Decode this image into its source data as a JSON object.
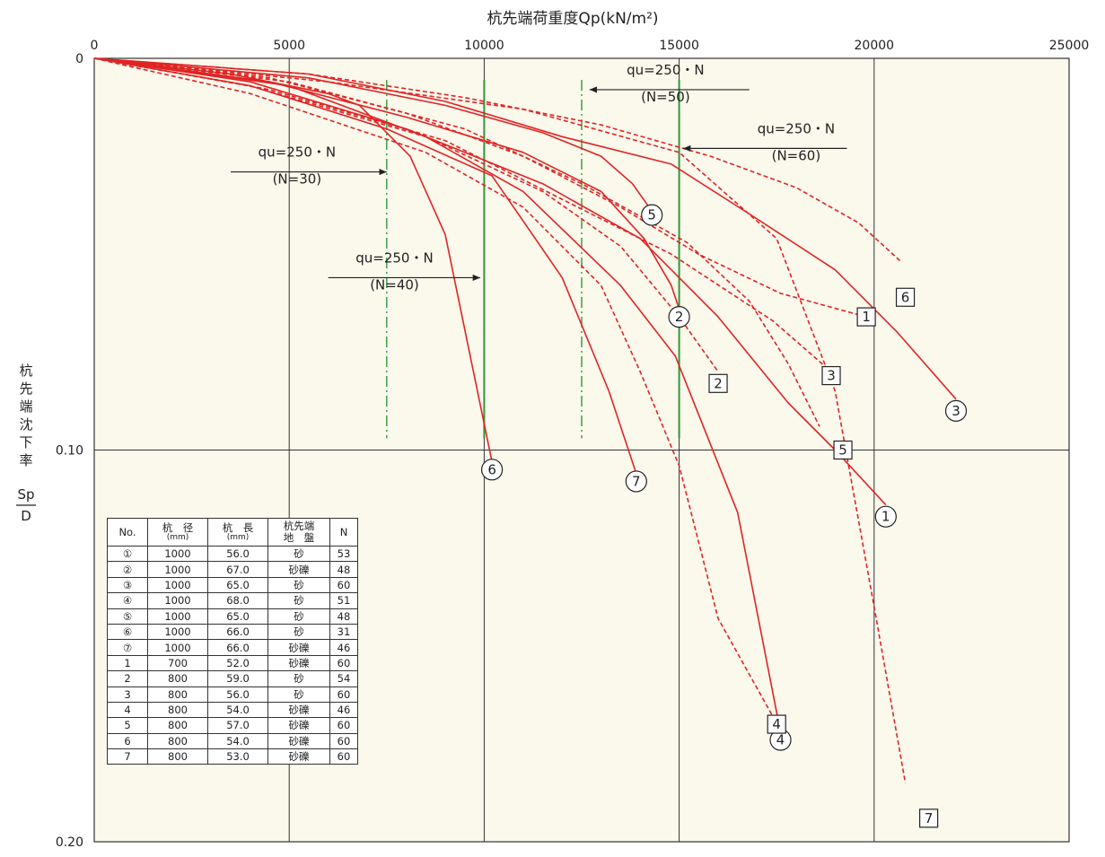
{
  "chart_data": {
    "type": "line",
    "title": "杭先端荷重度Qp(kN/m²)",
    "xlabel": "杭先端荷重度Qp(kN/m²)",
    "ylabel_chars": [
      "杭",
      "先",
      "端",
      "沈",
      "下",
      "率"
    ],
    "ylabel_fraction": {
      "numerator": "Sp",
      "denominator": "D"
    },
    "xlim": [
      0,
      25000
    ],
    "ylim": [
      0,
      0.2
    ],
    "y_inverted": true,
    "x_ticks": [
      0,
      5000,
      10000,
      15000,
      20000,
      25000
    ],
    "x_tick_labels": [
      "0",
      "5000",
      "10000",
      "15000",
      "20000",
      "25000"
    ],
    "y_ticks": [
      0,
      0.1,
      0.2
    ],
    "y_tick_labels": [
      "0",
      "0.10",
      "0.20"
    ],
    "grid": true,
    "colors": {
      "curve": "#e02424",
      "guide": "#2e9a3a",
      "grid": "#333333",
      "plot_bg": "#fbf8ec",
      "axis": "#222222"
    },
    "series": [
      {
        "name": "①",
        "style": "solid",
        "points": [
          [
            0,
            0
          ],
          [
            4000,
            0.006
          ],
          [
            8000,
            0.018
          ],
          [
            11500,
            0.032
          ],
          [
            14000,
            0.046
          ],
          [
            16000,
            0.066
          ],
          [
            17800,
            0.088
          ],
          [
            19000,
            0.1
          ],
          [
            20300,
            0.114
          ]
        ],
        "marker": "①",
        "marker_at": [
          20300,
          0.117
        ]
      },
      {
        "name": "②",
        "style": "solid",
        "points": [
          [
            0,
            0
          ],
          [
            4500,
            0.006
          ],
          [
            8000,
            0.015
          ],
          [
            11000,
            0.024
          ],
          [
            13000,
            0.034
          ],
          [
            14100,
            0.046
          ],
          [
            14800,
            0.058
          ],
          [
            15000,
            0.064
          ]
        ],
        "marker": "②",
        "marker_at": [
          15000,
          0.066
        ]
      },
      {
        "name": "③",
        "style": "solid",
        "points": [
          [
            0,
            0
          ],
          [
            5500,
            0.004
          ],
          [
            9000,
            0.011
          ],
          [
            12000,
            0.02
          ],
          [
            14800,
            0.027
          ],
          [
            17000,
            0.041
          ],
          [
            19000,
            0.054
          ],
          [
            20600,
            0.07
          ],
          [
            22100,
            0.087
          ]
        ],
        "marker": "③",
        "marker_at": [
          22100,
          0.09
        ]
      },
      {
        "name": "④",
        "style": "solid",
        "points": [
          [
            0,
            0
          ],
          [
            5000,
            0.007
          ],
          [
            8500,
            0.02
          ],
          [
            11000,
            0.034
          ],
          [
            13500,
            0.058
          ],
          [
            14900,
            0.076
          ],
          [
            16500,
            0.116
          ],
          [
            17600,
            0.172
          ]
        ],
        "marker": "④",
        "marker_at": [
          17600,
          0.174
        ]
      },
      {
        "name": "⑤",
        "style": "solid",
        "points": [
          [
            0,
            0
          ],
          [
            5500,
            0.005
          ],
          [
            9000,
            0.012
          ],
          [
            11500,
            0.019
          ],
          [
            13000,
            0.025
          ],
          [
            13800,
            0.032
          ],
          [
            14300,
            0.039
          ]
        ],
        "marker": "⑤",
        "marker_at": [
          14300,
          0.04
        ]
      },
      {
        "name": "⑥",
        "style": "solid",
        "points": [
          [
            0,
            0
          ],
          [
            3500,
            0.004
          ],
          [
            6000,
            0.009
          ],
          [
            6800,
            0.012
          ],
          [
            8100,
            0.025
          ],
          [
            9000,
            0.045
          ],
          [
            10200,
            0.103
          ]
        ],
        "marker": "⑥",
        "marker_at": [
          10200,
          0.105
        ]
      },
      {
        "name": "⑦",
        "style": "solid",
        "points": [
          [
            0,
            0
          ],
          [
            4000,
            0.007
          ],
          [
            7500,
            0.018
          ],
          [
            10200,
            0.03
          ],
          [
            12000,
            0.056
          ],
          [
            13200,
            0.085
          ],
          [
            13900,
            0.106
          ]
        ],
        "marker": "⑦",
        "marker_at": [
          13900,
          0.108
        ]
      },
      {
        "name": "1",
        "style": "dashed",
        "points": [
          [
            0,
            0
          ],
          [
            4500,
            0.005
          ],
          [
            8000,
            0.014
          ],
          [
            11000,
            0.025
          ],
          [
            13500,
            0.038
          ],
          [
            15500,
            0.05
          ],
          [
            17600,
            0.06
          ],
          [
            19800,
            0.066
          ]
        ],
        "marker": "1",
        "marker_at": [
          19800,
          0.066
        ]
      },
      {
        "name": "2",
        "style": "dashed",
        "points": [
          [
            0,
            0
          ],
          [
            4000,
            0.007
          ],
          [
            8500,
            0.02
          ],
          [
            11500,
            0.034
          ],
          [
            13500,
            0.048
          ],
          [
            15000,
            0.066
          ],
          [
            16000,
            0.08
          ]
        ],
        "marker": "2",
        "marker_at": [
          16000,
          0.083
        ]
      },
      {
        "name": "3",
        "style": "dashed",
        "points": [
          [
            0,
            0
          ],
          [
            4500,
            0.008
          ],
          [
            9000,
            0.021
          ],
          [
            12000,
            0.036
          ],
          [
            14800,
            0.05
          ],
          [
            17400,
            0.067
          ],
          [
            18900,
            0.08
          ]
        ],
        "marker": "3",
        "marker_at": [
          18900,
          0.081
        ]
      },
      {
        "name": "4",
        "style": "dashed",
        "points": [
          [
            0,
            0
          ],
          [
            4000,
            0.009
          ],
          [
            8500,
            0.024
          ],
          [
            11000,
            0.038
          ],
          [
            13000,
            0.058
          ],
          [
            14000,
            0.08
          ],
          [
            15000,
            0.104
          ],
          [
            16000,
            0.143
          ],
          [
            17400,
            0.168
          ]
        ],
        "marker": "4",
        "marker_at": [
          17500,
          0.17
        ]
      },
      {
        "name": "5",
        "style": "dashed",
        "points": [
          [
            0,
            0
          ],
          [
            5000,
            0.006
          ],
          [
            9500,
            0.018
          ],
          [
            12500,
            0.032
          ],
          [
            15200,
            0.047
          ],
          [
            16800,
            0.062
          ],
          [
            17800,
            0.078
          ],
          [
            18600,
            0.094
          ]
        ],
        "marker": "5",
        "marker_at": [
          19200,
          0.1
        ]
      },
      {
        "name": "6",
        "style": "dashed",
        "points": [
          [
            0,
            0
          ],
          [
            5500,
            0.004
          ],
          [
            9500,
            0.01
          ],
          [
            13000,
            0.017
          ],
          [
            15800,
            0.025
          ],
          [
            18000,
            0.033
          ],
          [
            19600,
            0.042
          ],
          [
            20700,
            0.052
          ]
        ],
        "marker": "6",
        "marker_at": [
          20800,
          0.061
        ]
      },
      {
        "name": "7",
        "style": "dashed",
        "points": [
          [
            0,
            0
          ],
          [
            6000,
            0.006
          ],
          [
            11000,
            0.013
          ],
          [
            15000,
            0.024
          ],
          [
            17500,
            0.046
          ],
          [
            19000,
            0.085
          ],
          [
            20000,
            0.14
          ],
          [
            20800,
            0.185
          ]
        ],
        "marker": "7",
        "marker_at": [
          21400,
          0.194
        ]
      }
    ],
    "guide_lines": [
      {
        "x": 7500,
        "style": "dashdot"
      },
      {
        "x": 10000,
        "style": "solid"
      },
      {
        "x": 12500,
        "style": "dashdot"
      },
      {
        "x": 15000,
        "style": "solid"
      }
    ],
    "annotations": [
      {
        "line1": "qu=250・N",
        "line2": "(N=30)",
        "arrow_dir": "right",
        "arrow_from": [
          3500,
          0.029
        ],
        "arrow_to": [
          7500,
          0.029
        ],
        "text_at": [
          5200,
          0.0265
        ]
      },
      {
        "line1": "qu=250・N",
        "line2": "(N=40)",
        "arrow_dir": "right",
        "arrow_from": [
          6000,
          0.056
        ],
        "arrow_to": [
          9900,
          0.056
        ],
        "text_at": [
          7700,
          0.0535
        ]
      },
      {
        "line1": "qu=250・N",
        "line2": "(N=50)",
        "arrow_dir": "left",
        "arrow_from": [
          16800,
          0.008
        ],
        "arrow_to": [
          12700,
          0.008
        ],
        "text_at": [
          14650,
          0.0055
        ]
      },
      {
        "line1": "qu=250・N",
        "line2": "(N=60)",
        "arrow_dir": "left",
        "arrow_from": [
          19300,
          0.023
        ],
        "arrow_to": [
          15100,
          0.023
        ],
        "text_at": [
          18000,
          0.0205
        ]
      }
    ]
  },
  "pile_table": {
    "headers": [
      {
        "main": "No.",
        "sub": ""
      },
      {
        "main": "杭　径",
        "sub": "(mm)"
      },
      {
        "main": "杭　長",
        "sub": "(mm)"
      },
      {
        "main": "杭先端",
        "sub": "地　盤"
      },
      {
        "main": "N",
        "sub": ""
      }
    ],
    "rows": [
      {
        "no": "①",
        "diameter": "1000",
        "length": "56.0",
        "ground": "砂",
        "n": "53"
      },
      {
        "no": "②",
        "diameter": "1000",
        "length": "67.0",
        "ground": "砂礫",
        "n": "48"
      },
      {
        "no": "③",
        "diameter": "1000",
        "length": "65.0",
        "ground": "砂",
        "n": "60"
      },
      {
        "no": "④",
        "diameter": "1000",
        "length": "68.0",
        "ground": "砂",
        "n": "51"
      },
      {
        "no": "⑤",
        "diameter": "1000",
        "length": "65.0",
        "ground": "砂",
        "n": "48"
      },
      {
        "no": "⑥",
        "diameter": "1000",
        "length": "66.0",
        "ground": "砂",
        "n": "31"
      },
      {
        "no": "⑦",
        "diameter": "1000",
        "length": "66.0",
        "ground": "砂礫",
        "n": "46"
      },
      {
        "no": "1",
        "diameter": "700",
        "length": "52.0",
        "ground": "砂礫",
        "n": "60"
      },
      {
        "no": "2",
        "diameter": "800",
        "length": "59.0",
        "ground": "砂",
        "n": "54"
      },
      {
        "no": "3",
        "diameter": "800",
        "length": "56.0",
        "ground": "砂",
        "n": "60"
      },
      {
        "no": "4",
        "diameter": "800",
        "length": "54.0",
        "ground": "砂礫",
        "n": "46"
      },
      {
        "no": "5",
        "diameter": "800",
        "length": "57.0",
        "ground": "砂礫",
        "n": "60"
      },
      {
        "no": "6",
        "diameter": "800",
        "length": "54.0",
        "ground": "砂礫",
        "n": "60"
      },
      {
        "no": "7",
        "diameter": "800",
        "length": "53.0",
        "ground": "砂礫",
        "n": "60"
      }
    ]
  }
}
